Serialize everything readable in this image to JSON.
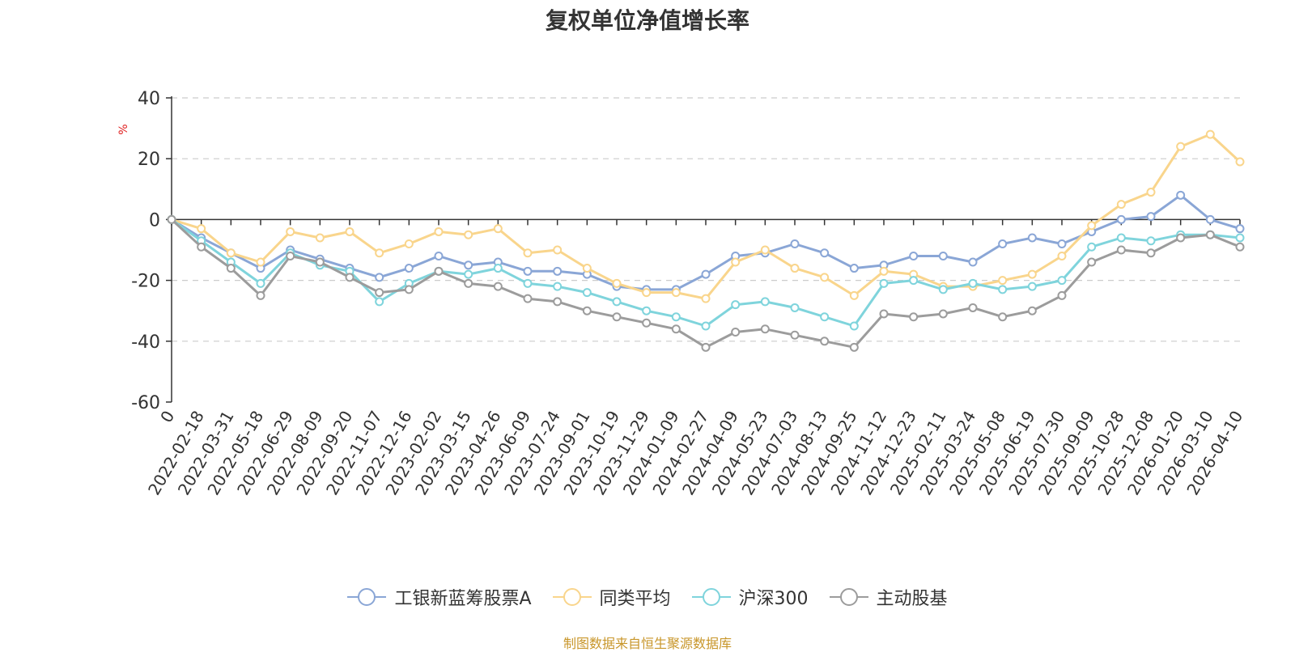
{
  "chart_data": {
    "type": "line",
    "title": "复权单位净值增长率",
    "ylabel": "%",
    "ylim": [
      -60,
      40
    ],
    "yticks": [
      40,
      20,
      0,
      -20,
      -40,
      -60
    ],
    "grid": true,
    "legend_position": "bottom-center",
    "categories": [
      "0",
      "2022-02-18",
      "2022-03-31",
      "2022-05-18",
      "2022-06-29",
      "2022-08-09",
      "2022-09-20",
      "2022-11-07",
      "2022-12-16",
      "2023-02-02",
      "2023-03-15",
      "2023-04-26",
      "2023-06-09",
      "2023-07-24",
      "2023-09-01",
      "2023-10-19",
      "2023-11-29",
      "2024-01-09",
      "2024-02-27",
      "2024-04-09",
      "2024-05-23",
      "2024-07-03",
      "2024-08-13",
      "2024-09-25",
      "2024-11-12",
      "2024-12-23",
      "2025-02-11",
      "2025-03-24",
      "2025-05-08",
      "2025-06-19",
      "2025-07-30",
      "2025-09-09",
      "2025-10-28",
      "2025-12-08",
      "2026-01-20",
      "2026-03-10",
      "2026-04-10"
    ],
    "series": [
      {
        "name": "工银新蓝筹股票A",
        "color": "#8aa6d6",
        "values": [
          0,
          -6,
          -11,
          -16,
          -10,
          -13,
          -16,
          -19,
          -16,
          -12,
          -15,
          -14,
          -17,
          -17,
          -18,
          -22,
          -23,
          -23,
          -18,
          -12,
          -11,
          -8,
          -11,
          -16,
          -15,
          -12,
          -12,
          -14,
          -8,
          -6,
          -8,
          -4,
          0,
          1,
          8,
          0,
          -3
        ]
      },
      {
        "name": "同类平均",
        "color": "#f9d58c",
        "values": [
          0,
          -3,
          -11,
          -14,
          -4,
          -6,
          -4,
          -11,
          -8,
          -4,
          -5,
          -3,
          -11,
          -10,
          -16,
          -21,
          -24,
          -24,
          -26,
          -14,
          -10,
          -16,
          -19,
          -25,
          -17,
          -18,
          -22,
          -22,
          -20,
          -18,
          -12,
          -2,
          5,
          9,
          24,
          28,
          19
        ]
      },
      {
        "name": "沪深300",
        "color": "#7fd4dc",
        "values": [
          0,
          -7,
          -14,
          -21,
          -11,
          -15,
          -17,
          -27,
          -21,
          -17,
          -18,
          -16,
          -21,
          -22,
          -24,
          -27,
          -30,
          -32,
          -35,
          -28,
          -27,
          -29,
          -32,
          -35,
          -21,
          -20,
          -23,
          -21,
          -23,
          -22,
          -20,
          -9,
          -6,
          -7,
          -5,
          -5,
          -6
        ]
      },
      {
        "name": "主动股基",
        "color": "#9c9c9c",
        "values": [
          0,
          -9,
          -16,
          -25,
          -12,
          -14,
          -19,
          -24,
          -23,
          -17,
          -21,
          -22,
          -26,
          -27,
          -30,
          -32,
          -34,
          -36,
          -42,
          -37,
          -36,
          -38,
          -40,
          -42,
          -31,
          -32,
          -31,
          -29,
          -32,
          -30,
          -25,
          -14,
          -10,
          -11,
          -6,
          -5,
          -9
        ]
      }
    ]
  },
  "legend": [
    {
      "label": "工银新蓝筹股票A",
      "color": "#8aa6d6"
    },
    {
      "label": "同类平均",
      "color": "#f9d58c"
    },
    {
      "label": "沪深300",
      "color": "#7fd4dc"
    },
    {
      "label": "主动股基",
      "color": "#9c9c9c"
    }
  ],
  "source": "制图数据来自恒生聚源数据库"
}
